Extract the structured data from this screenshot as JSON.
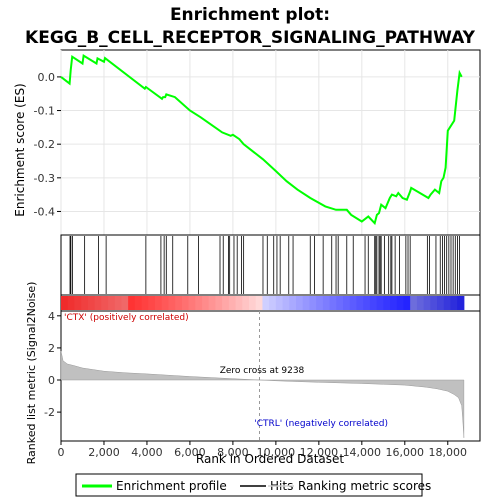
{
  "chart_data": {
    "type": "line",
    "title_line1": "Enrichment plot:",
    "title_line2": "KEGG_B_CELL_RECEPTOR_SIGNALING_PATHWAY",
    "es_panel": {
      "ylabel": "Enrichment score (ES)",
      "ylim": [
        -0.47,
        0.08
      ],
      "yticks": [
        0.0,
        -0.1,
        -0.2,
        -0.3,
        -0.4
      ],
      "ytick_labels": [
        "0.0",
        "-0.1",
        "-0.2",
        "-0.3",
        "-0.4"
      ],
      "series": [
        {
          "name": "Enrichment profile",
          "color": "#00ff00",
          "x": [
            0,
            400,
            450,
            520,
            1000,
            1050,
            1650,
            1700,
            2000,
            2050,
            3900,
            3950,
            4700,
            4750,
            4850,
            4900,
            5300,
            6000,
            6500,
            7500,
            7900,
            8000,
            8300,
            8500,
            9400,
            10000,
            10500,
            11000,
            11600,
            12300,
            12800,
            13300,
            13500,
            14000,
            14200,
            14300,
            14600,
            14700,
            14800,
            14900,
            15100,
            15300,
            15400,
            15600,
            15700,
            15900,
            16100,
            16250,
            16300,
            17100,
            17200,
            17400,
            17600,
            17700,
            17800,
            17900,
            18000,
            18300,
            18450,
            18550,
            18650
          ],
          "y": [
            0.0,
            -0.02,
            0.02,
            0.06,
            0.04,
            0.063,
            0.04,
            0.055,
            0.045,
            0.056,
            -0.035,
            -0.03,
            -0.065,
            -0.06,
            -0.06,
            -0.052,
            -0.06,
            -0.1,
            -0.12,
            -0.165,
            -0.175,
            -0.172,
            -0.185,
            -0.2,
            -0.245,
            -0.28,
            -0.31,
            -0.335,
            -0.36,
            -0.385,
            -0.395,
            -0.395,
            -0.41,
            -0.43,
            -0.42,
            -0.415,
            -0.435,
            -0.41,
            -0.405,
            -0.38,
            -0.39,
            -0.36,
            -0.35,
            -0.355,
            -0.345,
            -0.36,
            -0.365,
            -0.34,
            -0.33,
            -0.36,
            -0.35,
            -0.335,
            -0.345,
            -0.31,
            -0.3,
            -0.27,
            -0.16,
            -0.13,
            -0.04,
            0.012,
            0.0
          ]
        }
      ]
    },
    "hits": [
      420,
      460,
      540,
      1100,
      1750,
      2100,
      3950,
      4650,
      4800,
      4900,
      5200,
      5900,
      6400,
      7400,
      7550,
      7800,
      7850,
      8050,
      8200,
      8400,
      8500,
      9400,
      9600,
      9900,
      10050,
      10200,
      10600,
      10800,
      11600,
      11800,
      12200,
      12600,
      12800,
      12900,
      13300,
      13600,
      14150,
      14300,
      14600,
      14650,
      14700,
      14800,
      14850,
      14900,
      15050,
      15250,
      15350,
      15400,
      15550,
      15750,
      16050,
      16150,
      16250,
      17050,
      17150,
      17450,
      17650,
      17750,
      17850,
      17950,
      18050,
      18150,
      18250,
      18350,
      18450,
      18550
    ],
    "metric_panel": {
      "ylabel": "Ranked list metric (Signal2Noise)",
      "xlabel": "Rank in Ordered Dataset",
      "ylim": [
        -3.8,
        4.3
      ],
      "yticks": [
        4,
        2,
        0,
        -2
      ],
      "ytick_labels": [
        "4",
        "2",
        "0",
        "-2"
      ],
      "xlim": [
        0,
        19500
      ],
      "xticks": [
        0,
        2000,
        4000,
        6000,
        8000,
        10000,
        12000,
        14000,
        16000,
        18000
      ],
      "xtick_labels": [
        "0",
        "2,000",
        "4,000",
        "6,000",
        "8,000",
        "10,000",
        "12,000",
        "14,000",
        "16,000",
        "18,000"
      ],
      "curve_x": [
        0,
        100,
        300,
        600,
        1000,
        2000,
        3000,
        4000,
        5000,
        6000,
        7000,
        8000,
        9238,
        10000,
        11000,
        12000,
        13000,
        14000,
        15000,
        16000,
        17000,
        17500,
        18000,
        18300,
        18500,
        18650,
        18700,
        18750
      ],
      "curve_y": [
        1.8,
        1.2,
        1.0,
        0.9,
        0.75,
        0.55,
        0.45,
        0.38,
        0.3,
        0.22,
        0.15,
        0.08,
        0.0,
        -0.05,
        -0.1,
        -0.14,
        -0.18,
        -0.22,
        -0.27,
        -0.32,
        -0.45,
        -0.55,
        -0.7,
        -0.9,
        -1.1,
        -1.6,
        -2.5,
        -3.6
      ],
      "zero_cross_label": "Zero cross at 9238",
      "zero_cross": 9238,
      "pos_label": "'CTX' (positively correlated)",
      "neg_label": "'CTRL' (negatively correlated)",
      "fill_color": "#c0c0c0"
    },
    "legend": {
      "items": [
        "Enrichment profile",
        "Hits",
        "Ranking metric scores"
      ],
      "placement": "bottom"
    },
    "colors": {
      "profile": "#00ff00",
      "pos_label": "#cc0000",
      "neg_label": "#0000cc"
    }
  }
}
